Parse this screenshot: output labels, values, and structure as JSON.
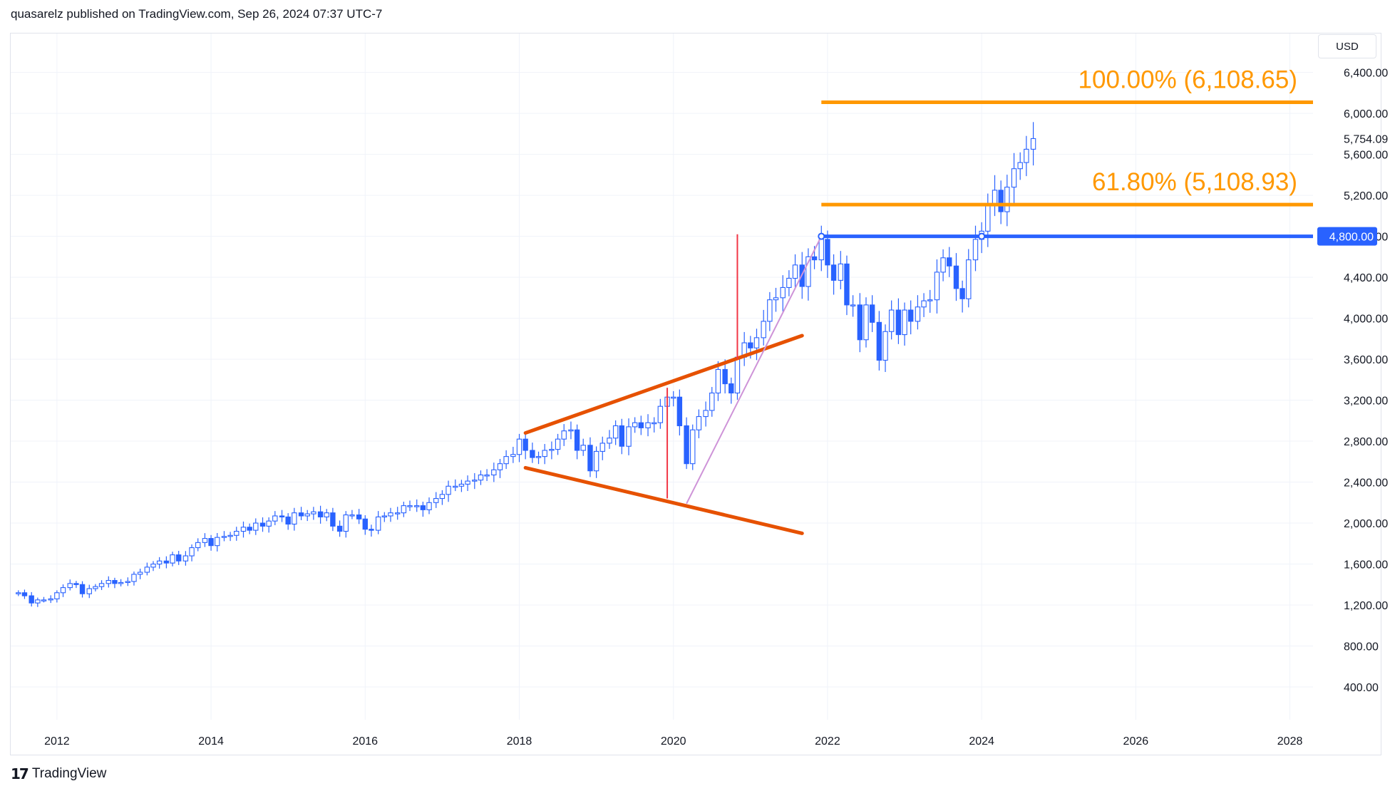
{
  "header": {
    "text": "quasarelz published on TradingView.com, Sep 26, 2024 07:37 UTC-7"
  },
  "currency": "USD",
  "footer": {
    "logo_glyph": "17",
    "brand": "TradingView"
  },
  "colors": {
    "up": "#2962ff",
    "down": "#2962ff",
    "channel": "#e65100",
    "fib": "#ff9800",
    "level": "#2962ff",
    "measure": "#f23645",
    "trendline": "#ce93d8",
    "grid": "#f0f3fa"
  },
  "chart_data": {
    "type": "candlestick",
    "interval": "monthly",
    "x_ticks": [
      "2012",
      "2014",
      "2016",
      "2018",
      "2020",
      "2022",
      "2024",
      "2026",
      "2028"
    ],
    "y_ticks": [
      "400.00",
      "800.00",
      "1,200.00",
      "1,600.00",
      "2,000.00",
      "2,400.00",
      "2,800.00",
      "3,200.00",
      "3,600.00",
      "4,000.00",
      "4,400.00",
      "4,800.00",
      "5,200.00",
      "5,600.00",
      "6,000.00",
      "6,400.00"
    ],
    "xlim": [
      2011.4,
      2028.3
    ],
    "ylim": [
      80,
      6780
    ],
    "last_price": {
      "label": "5,754.09",
      "value": 5754.09
    },
    "price_level": {
      "label": "4,800.00",
      "value": 4800,
      "x_start": 2021.92
    },
    "fib_levels": [
      {
        "label": "100.00% (6,108.65)",
        "value": 6108.65,
        "x_start": 2021.92
      },
      {
        "label": "61.80% (5,108.93)",
        "value": 5108.93,
        "x_start": 2021.92
      }
    ],
    "channel_lines": [
      {
        "from": [
          2018.08,
          2880
        ],
        "to": [
          2021.67,
          3830
        ]
      },
      {
        "from": [
          2018.08,
          2540
        ],
        "to": [
          2021.67,
          1900
        ]
      }
    ],
    "measure_lines": [
      {
        "x": 2019.92,
        "from": 2240,
        "to": 3320
      },
      {
        "x": 2020.83,
        "from": 3600,
        "to": 4820
      }
    ],
    "trendline": {
      "from": [
        2020.17,
        2190
      ],
      "to": [
        2021.92,
        4800
      ]
    },
    "anchor_points": [
      [
        2021.92,
        4800
      ],
      [
        2024.0,
        4800
      ]
    ],
    "closes": [
      [
        2011.5,
        1320
      ],
      [
        2011.58,
        1290
      ],
      [
        2011.67,
        1220
      ],
      [
        2011.75,
        1250
      ],
      [
        2011.83,
        1250
      ],
      [
        2011.92,
        1260
      ],
      [
        2012.0,
        1320
      ],
      [
        2012.08,
        1370
      ],
      [
        2012.17,
        1410
      ],
      [
        2012.25,
        1400
      ],
      [
        2012.33,
        1310
      ],
      [
        2012.42,
        1360
      ],
      [
        2012.5,
        1380
      ],
      [
        2012.58,
        1410
      ],
      [
        2012.67,
        1440
      ],
      [
        2012.75,
        1410
      ],
      [
        2012.83,
        1420
      ],
      [
        2012.92,
        1430
      ],
      [
        2013.0,
        1500
      ],
      [
        2013.08,
        1520
      ],
      [
        2013.17,
        1570
      ],
      [
        2013.25,
        1600
      ],
      [
        2013.33,
        1630
      ],
      [
        2013.42,
        1610
      ],
      [
        2013.5,
        1690
      ],
      [
        2013.58,
        1630
      ],
      [
        2013.67,
        1680
      ],
      [
        2013.75,
        1760
      ],
      [
        2013.83,
        1810
      ],
      [
        2013.92,
        1850
      ],
      [
        2014.0,
        1780
      ],
      [
        2014.08,
        1860
      ],
      [
        2014.17,
        1870
      ],
      [
        2014.25,
        1880
      ],
      [
        2014.33,
        1920
      ],
      [
        2014.42,
        1960
      ],
      [
        2014.5,
        1930
      ],
      [
        2014.58,
        2000
      ],
      [
        2014.67,
        1970
      ],
      [
        2014.75,
        2020
      ],
      [
        2014.83,
        2070
      ],
      [
        2014.92,
        2060
      ],
      [
        2015.0,
        1990
      ],
      [
        2015.08,
        2100
      ],
      [
        2015.17,
        2070
      ],
      [
        2015.25,
        2090
      ],
      [
        2015.33,
        2110
      ],
      [
        2015.42,
        2060
      ],
      [
        2015.5,
        2100
      ],
      [
        2015.58,
        1970
      ],
      [
        2015.67,
        1920
      ],
      [
        2015.75,
        2080
      ],
      [
        2015.83,
        2080
      ],
      [
        2015.92,
        2040
      ],
      [
        2016.0,
        1940
      ],
      [
        2016.08,
        1930
      ],
      [
        2016.17,
        2060
      ],
      [
        2016.25,
        2070
      ],
      [
        2016.33,
        2100
      ],
      [
        2016.42,
        2100
      ],
      [
        2016.5,
        2170
      ],
      [
        2016.58,
        2170
      ],
      [
        2016.67,
        2170
      ],
      [
        2016.75,
        2130
      ],
      [
        2016.83,
        2200
      ],
      [
        2016.92,
        2240
      ],
      [
        2017.0,
        2280
      ],
      [
        2017.08,
        2360
      ],
      [
        2017.17,
        2360
      ],
      [
        2017.25,
        2380
      ],
      [
        2017.33,
        2410
      ],
      [
        2017.42,
        2420
      ],
      [
        2017.5,
        2470
      ],
      [
        2017.58,
        2470
      ],
      [
        2017.67,
        2520
      ],
      [
        2017.75,
        2580
      ],
      [
        2017.83,
        2650
      ],
      [
        2017.92,
        2670
      ],
      [
        2018.0,
        2820
      ],
      [
        2018.08,
        2710
      ],
      [
        2018.17,
        2640
      ],
      [
        2018.25,
        2650
      ],
      [
        2018.33,
        2710
      ],
      [
        2018.42,
        2720
      ],
      [
        2018.5,
        2820
      ],
      [
        2018.58,
        2900
      ],
      [
        2018.67,
        2910
      ],
      [
        2018.75,
        2710
      ],
      [
        2018.83,
        2760
      ],
      [
        2018.92,
        2510
      ],
      [
        2019.0,
        2700
      ],
      [
        2019.08,
        2780
      ],
      [
        2019.17,
        2830
      ],
      [
        2019.25,
        2950
      ],
      [
        2019.33,
        2750
      ],
      [
        2019.42,
        2940
      ],
      [
        2019.5,
        2980
      ],
      [
        2019.58,
        2930
      ],
      [
        2019.67,
        2980
      ],
      [
        2019.75,
        2980
      ],
      [
        2019.83,
        3140
      ],
      [
        2019.92,
        3230
      ],
      [
        2020.0,
        3230
      ],
      [
        2020.08,
        2950
      ],
      [
        2020.17,
        2580
      ],
      [
        2020.25,
        2910
      ],
      [
        2020.33,
        3040
      ],
      [
        2020.42,
        3100
      ],
      [
        2020.5,
        3270
      ],
      [
        2020.58,
        3500
      ],
      [
        2020.67,
        3360
      ],
      [
        2020.75,
        3270
      ],
      [
        2020.83,
        3620
      ],
      [
        2020.92,
        3760
      ],
      [
        2021.0,
        3710
      ],
      [
        2021.08,
        3810
      ],
      [
        2021.17,
        3970
      ],
      [
        2021.25,
        4180
      ],
      [
        2021.33,
        4200
      ],
      [
        2021.42,
        4300
      ],
      [
        2021.5,
        4390
      ],
      [
        2021.58,
        4520
      ],
      [
        2021.67,
        4310
      ],
      [
        2021.75,
        4600
      ],
      [
        2021.83,
        4570
      ],
      [
        2021.92,
        4770
      ],
      [
        2022.0,
        4520
      ],
      [
        2022.08,
        4370
      ],
      [
        2022.17,
        4530
      ],
      [
        2022.25,
        4130
      ],
      [
        2022.33,
        4130
      ],
      [
        2022.42,
        3790
      ],
      [
        2022.5,
        4130
      ],
      [
        2022.58,
        3960
      ],
      [
        2022.67,
        3590
      ],
      [
        2022.75,
        3870
      ],
      [
        2022.83,
        4080
      ],
      [
        2022.92,
        3840
      ],
      [
        2023.0,
        4080
      ],
      [
        2023.08,
        3970
      ],
      [
        2023.17,
        4110
      ],
      [
        2023.25,
        4170
      ],
      [
        2023.33,
        4180
      ],
      [
        2023.42,
        4450
      ],
      [
        2023.5,
        4590
      ],
      [
        2023.58,
        4510
      ],
      [
        2023.67,
        4290
      ],
      [
        2023.75,
        4190
      ],
      [
        2023.83,
        4570
      ],
      [
        2023.92,
        4770
      ],
      [
        2024.0,
        4850
      ],
      [
        2024.08,
        5100
      ],
      [
        2024.17,
        5250
      ],
      [
        2024.25,
        5040
      ],
      [
        2024.33,
        5280
      ],
      [
        2024.42,
        5460
      ],
      [
        2024.5,
        5520
      ],
      [
        2024.58,
        5650
      ],
      [
        2024.67,
        5754
      ]
    ]
  }
}
